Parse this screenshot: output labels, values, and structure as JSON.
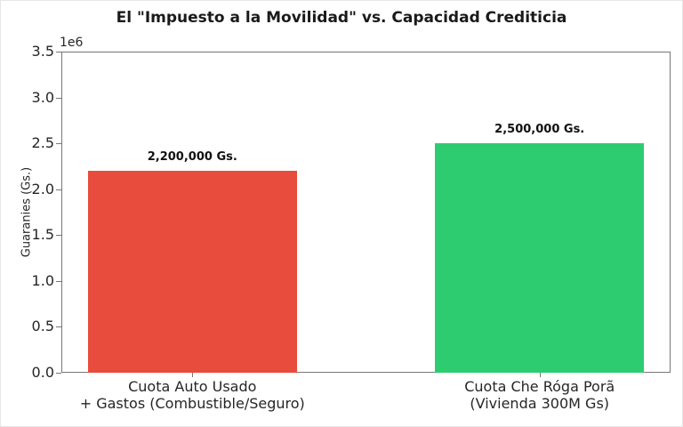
{
  "chart_data": {
    "type": "bar",
    "title": "El \"Impuesto a la Movilidad\" vs. Capacidad Crediticia",
    "ylabel": "Guaranies (Gs.)",
    "xlabel": "",
    "offset_text": "1e6",
    "ylim": [
      0,
      3500000
    ],
    "yticks": [
      0,
      500000,
      1000000,
      1500000,
      2000000,
      2500000,
      3000000,
      3500000
    ],
    "ytick_labels": [
      "0.0",
      "0.5",
      "1.0",
      "1.5",
      "2.0",
      "2.5",
      "3.0",
      "3.5"
    ],
    "categories": [
      [
        "Cuota Auto Usado",
        "+ Gastos (Combustible/Seguro)"
      ],
      [
        "Cuota Che Róga Porã",
        "(Vivienda 300M Gs)"
      ]
    ],
    "values": [
      2200000,
      2500000
    ],
    "bar_labels": [
      "2,200,000 Gs.",
      "2,500,000 Gs."
    ],
    "bar_colors": [
      "#e74c3c",
      "#2ecc71"
    ],
    "grid": false,
    "legend": null
  }
}
